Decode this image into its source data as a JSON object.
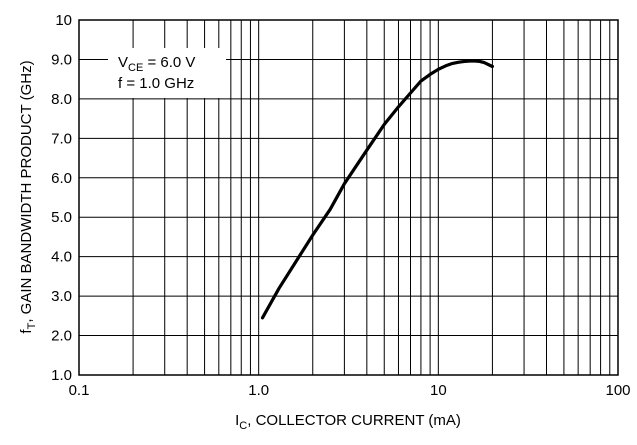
{
  "chart_data": {
    "type": "line",
    "x_scale": "log",
    "xlim": [
      0.1,
      100
    ],
    "ylim": [
      1.0,
      10
    ],
    "grid": true,
    "x_ticks": [
      "0.1",
      "1.0",
      "10",
      "100"
    ],
    "y_ticks": [
      "1.0",
      "2.0",
      "3.0",
      "4.0",
      "5.0",
      "6.0",
      "7.0",
      "8.0",
      "9.0",
      "10"
    ],
    "xlabel": {
      "main": "I",
      "sub": "C",
      "rest": ", COLLECTOR CURRENT (mA)"
    },
    "ylabel": {
      "main": "f",
      "sub": "T",
      "rest": ", GAIN BANDWIDTH PRODUCT (GHz)"
    },
    "annotation": {
      "line1_main": "V",
      "line1_sub": "CE",
      "line1_rest": " = 6.0 V",
      "line2": "f = 1.0 GHz"
    },
    "series": [
      {
        "x": [
          1.05,
          1.3,
          1.6,
          2.0,
          2.5,
          3.0,
          4.0,
          5.0,
          6.0,
          7.0,
          8.0,
          9.0,
          10.0,
          11.0,
          12.0,
          13.0,
          14.0,
          15.0,
          16.0,
          17.0,
          18.0,
          20.0
        ],
        "y": [
          2.45,
          3.2,
          3.85,
          4.55,
          5.2,
          5.85,
          6.7,
          7.35,
          7.8,
          8.15,
          8.45,
          8.62,
          8.75,
          8.84,
          8.9,
          8.93,
          8.95,
          8.96,
          8.96,
          8.95,
          8.92,
          8.82
        ]
      }
    ]
  }
}
